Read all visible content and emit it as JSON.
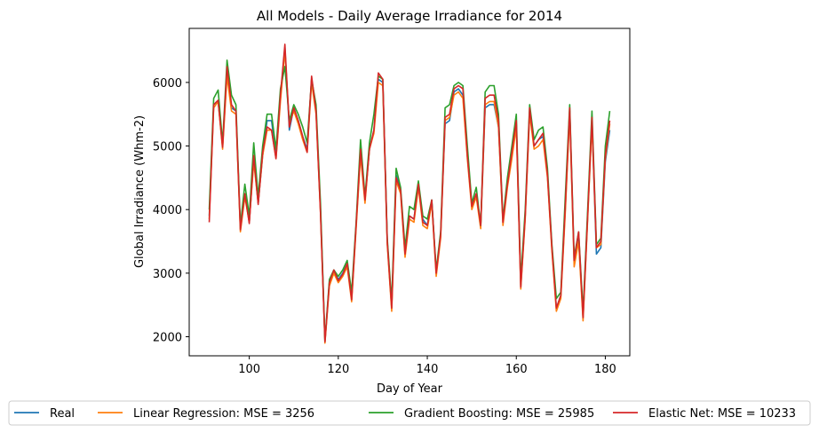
{
  "chart_data": {
    "type": "line",
    "title": "All Models - Daily Average Irradiance for 2014",
    "xlabel": "Day of Year",
    "ylabel": "Global Irradiance (Whm-2)",
    "xlim": [
      86.5,
      185.5
    ],
    "ylim": [
      1700,
      6850
    ],
    "xticks": [
      100,
      120,
      140,
      160,
      180
    ],
    "yticks": [
      2000,
      3000,
      4000,
      5000,
      6000
    ],
    "grid": false,
    "legend_position": "bottom",
    "x": [
      91,
      92,
      93,
      94,
      95,
      96,
      97,
      98,
      99,
      100,
      101,
      102,
      103,
      104,
      105,
      106,
      107,
      108,
      109,
      110,
      111,
      112,
      113,
      114,
      115,
      116,
      117,
      118,
      119,
      120,
      121,
      122,
      123,
      124,
      125,
      126,
      127,
      128,
      129,
      130,
      131,
      132,
      133,
      134,
      135,
      136,
      137,
      138,
      139,
      140,
      141,
      142,
      143,
      144,
      145,
      146,
      147,
      148,
      149,
      150,
      151,
      152,
      153,
      154,
      155,
      156,
      157,
      158,
      159,
      160,
      161,
      162,
      163,
      164,
      165,
      166,
      167,
      168,
      169,
      170,
      171,
      172,
      173,
      174,
      175,
      176,
      177,
      178,
      179,
      180,
      181
    ],
    "series": [
      {
        "name": "Real",
        "color": "#1f77b4",
        "values": [
          3900,
          5650,
          5700,
          5000,
          6150,
          5600,
          5550,
          3700,
          4250,
          3800,
          4800,
          4100,
          4850,
          5400,
          5400,
          4850,
          5750,
          6550,
          5250,
          5600,
          5400,
          5150,
          4950,
          6050,
          5550,
          4000,
          1920,
          2850,
          3050,
          2900,
          3000,
          3150,
          2600,
          3750,
          4900,
          4150,
          4950,
          5250,
          6050,
          6000,
          3500,
          2450,
          4550,
          4300,
          3300,
          3900,
          3850,
          4400,
          3850,
          3750,
          4150,
          3000,
          3600,
          5350,
          5400,
          5850,
          5900,
          5800,
          4850,
          4050,
          4250,
          3750,
          5600,
          5650,
          5650,
          5300,
          3800,
          4400,
          4850,
          5350,
          2800,
          3900,
          5550,
          5000,
          5100,
          5150,
          4550,
          3400,
          2450,
          2650,
          4000,
          5550,
          3150,
          3550,
          2300,
          3850,
          5400,
          3300,
          3400,
          4750,
          5250
        ]
      },
      {
        "name": "Linear Regression: MSE = 3256",
        "color": "#ff7f0e",
        "values": [
          3850,
          5600,
          5700,
          4950,
          6100,
          5550,
          5500,
          3650,
          4200,
          3800,
          4750,
          4100,
          4850,
          5250,
          5250,
          4800,
          5700,
          6500,
          5350,
          5550,
          5350,
          5100,
          4900,
          6000,
          5500,
          3950,
          1900,
          2800,
          3000,
          2850,
          2950,
          3100,
          2550,
          3700,
          4850,
          4100,
          4950,
          5200,
          6000,
          5950,
          3450,
          2400,
          4450,
          4250,
          3250,
          3850,
          3800,
          4350,
          3750,
          3700,
          4100,
          2950,
          3550,
          5400,
          5450,
          5800,
          5850,
          5750,
          4800,
          4000,
          4200,
          3700,
          5650,
          5700,
          5700,
          5300,
          3750,
          4350,
          4800,
          5300,
          2750,
          3850,
          5500,
          4950,
          5000,
          5100,
          4500,
          3350,
          2400,
          2600,
          3950,
          5500,
          3100,
          3500,
          2250,
          3800,
          5350,
          3400,
          3450,
          4800,
          5350
        ]
      },
      {
        "name": "Gradient Boosting: MSE = 25985",
        "color": "#2ca02c",
        "values": [
          4000,
          5750,
          5880,
          5050,
          6350,
          5800,
          5650,
          3750,
          4400,
          3900,
          5050,
          4200,
          5000,
          5500,
          5500,
          4950,
          5900,
          6250,
          5400,
          5650,
          5500,
          5300,
          5050,
          6050,
          5650,
          4100,
          1950,
          2900,
          3050,
          2950,
          3050,
          3200,
          2700,
          3800,
          5100,
          4200,
          5050,
          5500,
          6100,
          6050,
          3550,
          2550,
          4650,
          4350,
          3400,
          4050,
          4000,
          4450,
          3900,
          3850,
          4150,
          3050,
          3650,
          5600,
          5650,
          5950,
          6000,
          5950,
          5000,
          4100,
          4350,
          3750,
          5850,
          5950,
          5950,
          5500,
          3850,
          4500,
          5000,
          5500,
          2900,
          4000,
          5650,
          5100,
          5250,
          5300,
          4650,
          3450,
          2600,
          2700,
          4200,
          5650,
          3250,
          3650,
          2400,
          3950,
          5550,
          3450,
          3550,
          5000,
          5550
        ]
      },
      {
        "name": "Elastic Net: MSE = 10233",
        "color": "#d62728",
        "values": [
          3800,
          5650,
          5720,
          4980,
          6250,
          5650,
          5550,
          3680,
          4250,
          3780,
          4850,
          4080,
          4900,
          5300,
          5250,
          4800,
          5800,
          6600,
          5300,
          5600,
          5400,
          5150,
          4900,
          6100,
          5550,
          3950,
          1920,
          2850,
          3050,
          2880,
          2980,
          3150,
          2580,
          3750,
          4950,
          4150,
          4950,
          5250,
          6150,
          6050,
          3500,
          2450,
          4500,
          4300,
          3300,
          3900,
          3850,
          4400,
          3800,
          3750,
          4150,
          3000,
          3600,
          5450,
          5500,
          5900,
          5950,
          5900,
          4850,
          4050,
          4250,
          3750,
          5750,
          5800,
          5800,
          5400,
          3800,
          4400,
          4900,
          5400,
          2780,
          3900,
          5600,
          5000,
          5100,
          5200,
          4550,
          3400,
          2450,
          2650,
          4050,
          5600,
          3200,
          3650,
          2300,
          3850,
          5450,
          3400,
          3500,
          4850,
          5400
        ]
      }
    ]
  }
}
